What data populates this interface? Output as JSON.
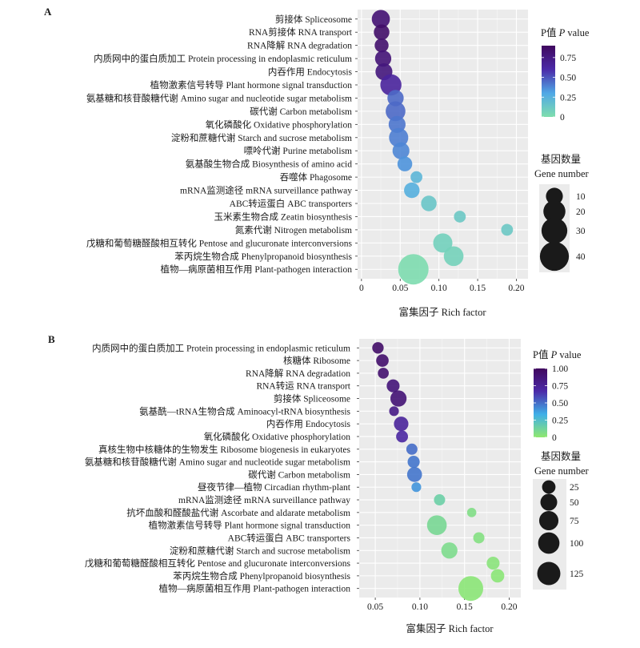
{
  "panels": [
    "A",
    "B"
  ],
  "chart_data": [
    {
      "panel": "A",
      "type": "scatter",
      "subtype": "bubble",
      "xlabel": "富集因子 Rich factor",
      "xlim": [
        -0.005,
        0.215
      ],
      "xticks": [
        0,
        0.05,
        0.1,
        0.15,
        0.2
      ],
      "xtick_labels": [
        "0",
        "0.05",
        "0.10",
        "0.15",
        "0.20"
      ],
      "grid": true,
      "background": "#ebebeb",
      "legend_position": "right",
      "color_legend": {
        "title_prefix": "P值",
        "title_it": "P",
        "title_suffix": " value",
        "min": 0,
        "max": 0.9,
        "tick_values": [
          0,
          0.25,
          0.5,
          0.75
        ],
        "tick_labels": [
          "0",
          "0.25",
          "0.50",
          "0.75"
        ],
        "stops": [
          "#7fdead",
          "#4fa8e6",
          "#4b2aa8",
          "#40085e"
        ]
      },
      "size_legend": {
        "title": "基因数量",
        "subtitle": "Gene number",
        "values": [
          10,
          20,
          30,
          40
        ],
        "labels": [
          "10",
          "20",
          "30",
          "40"
        ],
        "size_range": [
          2,
          45
        ]
      },
      "points": [
        {
          "term": "剪接体 Spliceosome",
          "rich_factor": 0.025,
          "gene_number": 12,
          "p_value": 0.82
        },
        {
          "term": "RNA剪接体 RNA transport",
          "rich_factor": 0.026,
          "gene_number": 8,
          "p_value": 0.86
        },
        {
          "term": "RNA降解 RNA degradation",
          "rich_factor": 0.026,
          "gene_number": 6,
          "p_value": 0.84
        },
        {
          "term": "内质网中的蛋白质加工 Protein processing in endoplasmic reticulum",
          "rich_factor": 0.028,
          "gene_number": 9,
          "p_value": 0.8
        },
        {
          "term": "内吞作用 Endocytosis",
          "rich_factor": 0.029,
          "gene_number": 10,
          "p_value": 0.78
        },
        {
          "term": "植物激素信号转导 Plant hormone signal transduction",
          "rich_factor": 0.038,
          "gene_number": 18,
          "p_value": 0.65
        },
        {
          "term": "氨基糖和核苷酸糖代谢 Amino sugar and nucleotide sugar metabolism",
          "rich_factor": 0.044,
          "gene_number": 9,
          "p_value": 0.45
        },
        {
          "term": "碳代谢 Carbon metabolism",
          "rich_factor": 0.044,
          "gene_number": 15,
          "p_value": 0.45
        },
        {
          "term": "氧化磷酸化 Oxidative phosphorylation",
          "rich_factor": 0.046,
          "gene_number": 10,
          "p_value": 0.42
        },
        {
          "term": "淀粉和蔗糖代谢 Starch and sucrose metabolism",
          "rich_factor": 0.048,
          "gene_number": 14,
          "p_value": 0.4
        },
        {
          "term": "嘌呤代谢 Purine metabolism",
          "rich_factor": 0.051,
          "gene_number": 10,
          "p_value": 0.38
        },
        {
          "term": "氨基酸生物合成 Biosynthesis of amino acid",
          "rich_factor": 0.056,
          "gene_number": 7,
          "p_value": 0.35
        },
        {
          "term": "吞噬体 Phagosome",
          "rich_factor": 0.071,
          "gene_number": 4,
          "p_value": 0.22
        },
        {
          "term": "mRNA监测途径 mRNA surveillance pathway",
          "rich_factor": 0.065,
          "gene_number": 8,
          "p_value": 0.26
        },
        {
          "term": "ABC转运蛋白 ABC transporters",
          "rich_factor": 0.087,
          "gene_number": 8,
          "p_value": 0.14
        },
        {
          "term": "玉米素生物合成 Zeatin biosynthesis",
          "rich_factor": 0.127,
          "gene_number": 4,
          "p_value": 0.12
        },
        {
          "term": "氮素代谢 Nitrogen metabolism",
          "rich_factor": 0.188,
          "gene_number": 4,
          "p_value": 0.12
        },
        {
          "term": "戊糖和葡萄糖醛酸相互转化 Pentose and glucuronate interconversions",
          "rich_factor": 0.105,
          "gene_number": 14,
          "p_value": 0.08
        },
        {
          "term": "苯丙烷生物合成 Phenylpropanoid biosynthesis",
          "rich_factor": 0.119,
          "gene_number": 15,
          "p_value": 0.07
        },
        {
          "term": "植物—病原菌相互作用 Plant-pathogen interaction",
          "rich_factor": 0.067,
          "gene_number": 45,
          "p_value": 0.01
        }
      ]
    },
    {
      "panel": "B",
      "type": "scatter",
      "subtype": "bubble",
      "xlabel": "富集因子 Rich factor",
      "xlim": [
        0.032,
        0.213
      ],
      "xticks": [
        0.05,
        0.1,
        0.15,
        0.2
      ],
      "xtick_labels": [
        "0.05",
        "0.10",
        "0.15",
        "0.20"
      ],
      "grid": true,
      "background": "#ebebeb",
      "legend_position": "right",
      "color_legend": {
        "title_prefix": "P值",
        "title_it": "P",
        "title_suffix": " value",
        "min": 0,
        "max": 1.0,
        "tick_values": [
          0,
          0.25,
          0.5,
          0.75,
          1.0
        ],
        "tick_labels": [
          "0",
          "0.25",
          "0.50",
          "0.75",
          "1.00"
        ],
        "stops": [
          "#90e870",
          "#3fb0e8",
          "#4b2aa8",
          "#40085e"
        ]
      },
      "size_legend": {
        "title": "基因数量",
        "subtitle": "Gene number",
        "values": [
          25,
          50,
          75,
          100,
          125
        ],
        "labels": [
          "25",
          "50",
          "75",
          "100",
          "125"
        ],
        "size_range": [
          5,
          150
        ]
      },
      "points": [
        {
          "term": "内质网中的蛋白质加工 Protein processing in endoplasmic reticulum",
          "rich_factor": 0.053,
          "gene_number": 15,
          "p_value": 0.96
        },
        {
          "term": "核糖体 Ribosome",
          "rich_factor": 0.058,
          "gene_number": 20,
          "p_value": 0.94
        },
        {
          "term": "RNA降解 RNA degradation",
          "rich_factor": 0.059,
          "gene_number": 13,
          "p_value": 0.93
        },
        {
          "term": "RNA转运 RNA transport",
          "rich_factor": 0.07,
          "gene_number": 22,
          "p_value": 0.88
        },
        {
          "term": "剪接体 Spliceosome",
          "rich_factor": 0.076,
          "gene_number": 45,
          "p_value": 0.9
        },
        {
          "term": "氨基酰—tRNA生物合成 Aminoacyl-tRNA biosynthesis",
          "rich_factor": 0.071,
          "gene_number": 9,
          "p_value": 0.82
        },
        {
          "term": "内吞作用 Endocytosis",
          "rich_factor": 0.079,
          "gene_number": 32,
          "p_value": 0.73
        },
        {
          "term": "氧化磷酸化 Oxidative phosphorylation",
          "rich_factor": 0.08,
          "gene_number": 17,
          "p_value": 0.7
        },
        {
          "term": "真核生物中核糖体的生物发生 Ribosome biogenesis in eukaryotes",
          "rich_factor": 0.091,
          "gene_number": 14,
          "p_value": 0.5
        },
        {
          "term": "氨基糖和核苷酸糖代谢 Amino sugar and nucleotide sugar metabolism",
          "rich_factor": 0.093,
          "gene_number": 18,
          "p_value": 0.48
        },
        {
          "term": "碳代谢 Carbon metabolism",
          "rich_factor": 0.094,
          "gene_number": 35,
          "p_value": 0.48
        },
        {
          "term": "昼夜节律—植物 Circadian rhythm-plant",
          "rich_factor": 0.096,
          "gene_number": 9,
          "p_value": 0.4
        },
        {
          "term": "mRNA监测途径 mRNA surveillance pathway",
          "rich_factor": 0.122,
          "gene_number": 14,
          "p_value": 0.15
        },
        {
          "term": "抗坏血酸和醛酸盐代谢 Ascorbate and aldarate metabolism",
          "rich_factor": 0.158,
          "gene_number": 8,
          "p_value": 0.06
        },
        {
          "term": "植物激素信号转导 Plant hormone signal transduction",
          "rich_factor": 0.119,
          "gene_number": 80,
          "p_value": 0.1
        },
        {
          "term": "ABC转运蛋白 ABC transporters",
          "rich_factor": 0.166,
          "gene_number": 14,
          "p_value": 0.05
        },
        {
          "term": "淀粉和蔗糖代谢 Starch and sucrose metabolism",
          "rich_factor": 0.133,
          "gene_number": 45,
          "p_value": 0.08
        },
        {
          "term": "戊糖和葡萄糖醛酸相互转化 Pentose and glucuronate interconversions",
          "rich_factor": 0.182,
          "gene_number": 22,
          "p_value": 0.03
        },
        {
          "term": "苯丙烷生物合成 Phenylpropanoid biosynthesis",
          "rich_factor": 0.187,
          "gene_number": 25,
          "p_value": 0.02
        },
        {
          "term": "植物—病原菌相互作用 Plant-pathogen interaction",
          "rich_factor": 0.157,
          "gene_number": 150,
          "p_value": 0.02
        }
      ]
    }
  ]
}
